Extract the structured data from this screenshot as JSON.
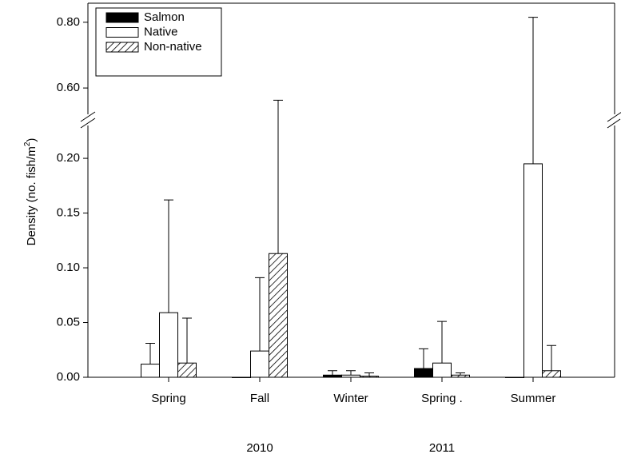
{
  "chart_data": {
    "type": "bar",
    "y_label": {
      "text": "Density (no. fish/m",
      "superscript": "2",
      "close": ")"
    },
    "categories": [
      "Spring",
      "Fall",
      "Winter",
      "Spring .",
      "Summer"
    ],
    "group_labels": [
      {
        "text": "2010",
        "category": 1
      },
      {
        "text": "2011",
        "category": 3
      }
    ],
    "series": [
      {
        "name": "Salmon",
        "color": "#000000",
        "fills": [
          "#ffffff",
          "#000000",
          "#000000",
          "#000000",
          "#000000"
        ],
        "values": [
          0.012,
          0,
          0.002,
          0.008,
          0
        ],
        "errors": [
          0.019,
          0,
          0.004,
          0.018,
          0
        ]
      },
      {
        "name": "Native",
        "color": "#ffffff",
        "values": [
          0.059,
          0.024,
          0.002,
          0.013,
          0.195
        ],
        "errors": [
          0.103,
          0.067,
          0.004,
          0.038,
          0.62
        ]
      },
      {
        "name": "Non-native",
        "color": "#ffffff",
        "hatch": true,
        "values": [
          0.013,
          0.113,
          0.001,
          0.002,
          0.006
        ],
        "errors": [
          0.041,
          0.45,
          0.003,
          0.002,
          0.023
        ]
      }
    ],
    "ylim": [
      0,
      0.23
    ],
    "yticks": [
      {
        "value": 0,
        "label": "0.00"
      },
      {
        "value": 0.05,
        "label": "0.05"
      },
      {
        "value": 0.1,
        "label": "0.10"
      },
      {
        "value": 0.15,
        "label": "0.15"
      },
      {
        "value": 0.2,
        "label": "0.20"
      }
    ],
    "ylim_upper": [
      0.52,
      0.858
    ],
    "yticks_upper": [
      {
        "value": 0.6,
        "label": "0.60"
      },
      {
        "value": 0.8,
        "label": "0.80"
      }
    ],
    "legend": "top-left"
  }
}
